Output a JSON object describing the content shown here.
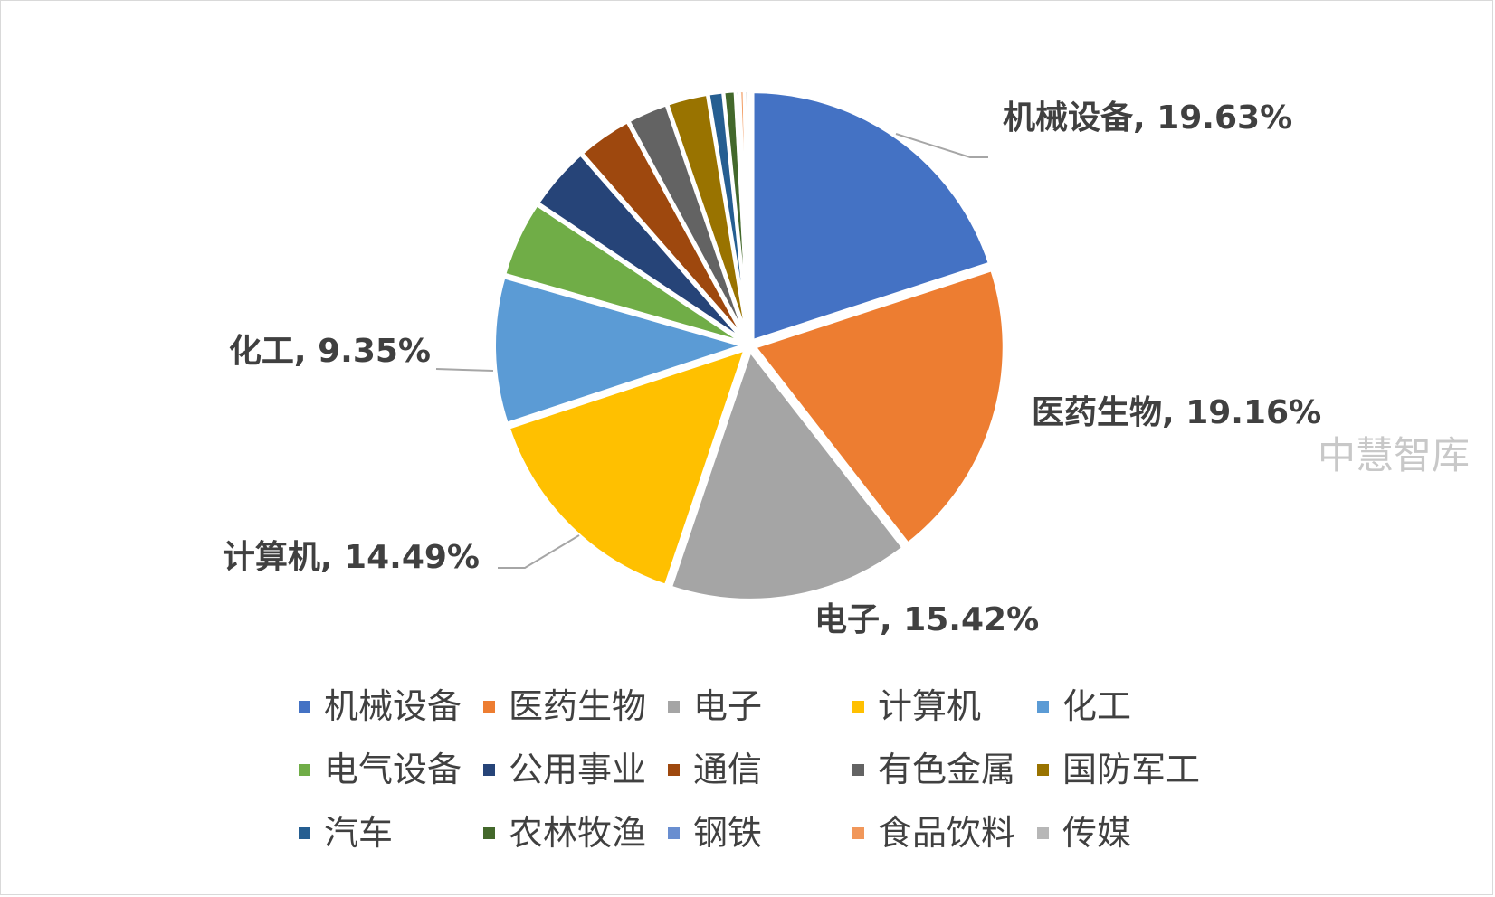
{
  "watermark": "中慧智库",
  "chart_data": {
    "type": "pie",
    "title": "",
    "categories": [
      "机械设备",
      "医药生物",
      "电子",
      "计算机",
      "化工",
      "电气设备",
      "公用事业",
      "通信",
      "有色金属",
      "国防军工",
      "汽车",
      "农林牧渔",
      "钢铁",
      "食品饮料",
      "传媒"
    ],
    "values": [
      19.63,
      19.16,
      15.42,
      14.49,
      9.35,
      4.86,
      4.1,
      3.5,
      2.6,
      2.6,
      0.95,
      0.75,
      0.25,
      0.3,
      0.3
    ],
    "colors": [
      "#4472C4",
      "#ED7D31",
      "#A5A5A5",
      "#FFC000",
      "#5B9BD5",
      "#70AD47",
      "#264478",
      "#9E480E",
      "#636363",
      "#997300",
      "#255E91",
      "#43682B",
      "#698ED0",
      "#F1975A",
      "#B7B7B7"
    ],
    "data_labels": [
      {
        "category": "机械设备",
        "text": "机械设备, 19.63%"
      },
      {
        "category": "医药生物",
        "text": "医药生物, 19.16%"
      },
      {
        "category": "电子",
        "text": "电子, 15.42%"
      },
      {
        "category": "计算机",
        "text": "计算机, 14.49%"
      },
      {
        "category": "化工",
        "text": "化工, 9.35%"
      }
    ],
    "legend_position": "bottom",
    "unit": "%"
  }
}
